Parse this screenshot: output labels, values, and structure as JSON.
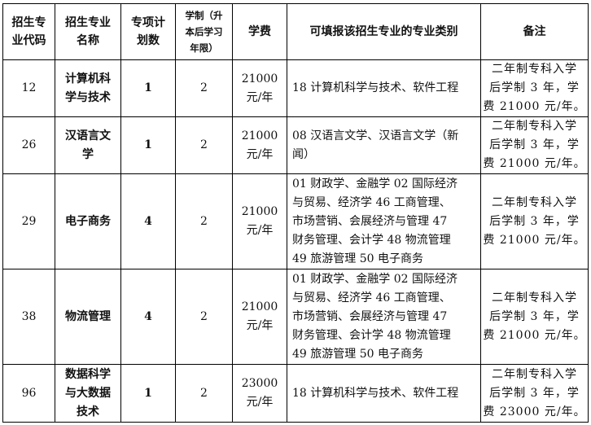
{
  "headers": {
    "code": [
      "招生专",
      "业代码"
    ],
    "name": [
      "招生专业",
      "名称"
    ],
    "plan": [
      "专项计",
      "划数"
    ],
    "duration": [
      "学制（升",
      "本后学习",
      "年限）"
    ],
    "fee": "学费",
    "categories": "可填报该招生专业的专业类别",
    "remarks": "备注"
  },
  "rows": [
    {
      "code": "12",
      "name": [
        "计算机科",
        "学与技术"
      ],
      "plan": "1",
      "duration": "2",
      "fee": [
        "21000",
        "元/年"
      ],
      "categories": [
        "18 计算机科学与技术、软件工程"
      ],
      "remarks": [
        "二年制专科入学",
        "后学制 3 年，学",
        "费 21000 元/年。"
      ]
    },
    {
      "code": "26",
      "name": [
        "汉语言文",
        "学"
      ],
      "plan": "1",
      "duration": "2",
      "fee": [
        "21000",
        "元/年"
      ],
      "categories": [
        "08 汉语言文学、汉语言文学（新",
        "闻）"
      ],
      "remarks": [
        "二年制专科入学",
        "后学制 3 年，学",
        "费 21000 元/年。"
      ]
    },
    {
      "code": "29",
      "name": [
        "电子商务"
      ],
      "plan": "4",
      "duration": "2",
      "fee": [
        "21000",
        "元/年"
      ],
      "categories": [
        "01 财政学、金融学 02 国际经济",
        "与贸易、经济学 46 工商管理、",
        "市场营销、会展经济与管理 47",
        "财务管理、会计学 48 物流管理",
        "49 旅游管理 50 电子商务"
      ],
      "remarks": [
        "二年制专科入学",
        "后学制 3 年，学",
        "费 21000 元/年。"
      ]
    },
    {
      "code": "38",
      "name": [
        "物流管理"
      ],
      "plan": "4",
      "duration": "2",
      "fee": [
        "21000",
        "元/年"
      ],
      "categories": [
        "01 财政学、金融学 02 国际经济",
        "与贸易、经济学 46 工商管理、",
        "市场营销、会展经济与管理 47",
        "财务管理、会计学 48 物流管理",
        "49 旅游管理 50 电子商务"
      ],
      "remarks": [
        "二年制专科入学",
        "后学制 3 年，学",
        "费 21000 元/年。"
      ]
    },
    {
      "code": "96",
      "name": [
        "数据科学",
        "与大数据",
        "技术"
      ],
      "plan": "1",
      "duration": "2",
      "fee": [
        "23000",
        "元/年"
      ],
      "categories": [
        "18 计算机科学与技术、软件工程"
      ],
      "remarks": [
        "二年制专科入学",
        "后学制 3 年，学",
        "费 23000 元/年。"
      ]
    }
  ]
}
